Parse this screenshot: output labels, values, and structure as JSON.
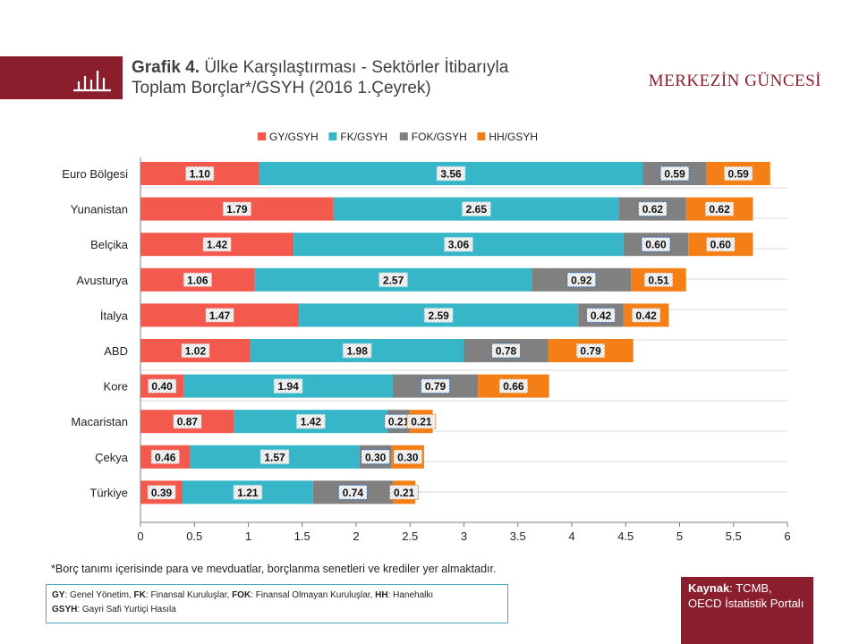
{
  "header": {
    "title_bold": "Grafik 4.",
    "title_rest": " Ülke Karşılaştırması - Sektörler İtibarıyla",
    "title_line2": "Toplam Borçlar*/GSYH  (2016 1.Çeyrek)",
    "brand": "MERKEZİN GÜNCESİ",
    "icon": "bar-chart-icon"
  },
  "colors": {
    "accent": "#8b1e2d",
    "GY": "#f4594e",
    "FK": "#36b6c8",
    "FOK": "#808080",
    "HH": "#f47f17"
  },
  "chart_data": {
    "type": "bar",
    "orientation": "horizontal",
    "stacked": true,
    "categories": [
      "Euro Bölgesi",
      "Yunanistan",
      "Belçika",
      "Avusturya",
      "İtalya",
      "ABD",
      "Kore",
      "Macaristan",
      "Çekya",
      "Türkiye"
    ],
    "series": [
      {
        "name": "GY/GSYH",
        "values": [
          1.1,
          1.79,
          1.42,
          1.06,
          1.47,
          1.02,
          0.4,
          0.87,
          0.46,
          0.39
        ],
        "labels": [
          "1.10",
          "1.79",
          "1.42",
          "1.06",
          "1.47",
          "1.02",
          "0.40",
          "0.87",
          "0.46",
          "0.39"
        ]
      },
      {
        "name": "FK/GSYH",
        "values": [
          3.56,
          2.65,
          3.06,
          2.57,
          2.59,
          1.98,
          1.94,
          1.42,
          1.57,
          1.21
        ],
        "labels": [
          "3.56",
          "2.65",
          "3.06",
          "2.57",
          "2.59",
          "1.98",
          "1.94",
          "1.42",
          "1.57",
          "1.21"
        ]
      },
      {
        "name": "FOK/GSYH",
        "values": [
          0.59,
          0.62,
          0.6,
          0.92,
          0.42,
          0.78,
          0.79,
          0.21,
          0.3,
          0.74
        ],
        "labels": [
          "0.59",
          "0.62",
          "0.60",
          "0.92",
          "0.42",
          "0.78",
          "0.79",
          "0.21",
          "0.30",
          "0.74"
        ]
      },
      {
        "name": "HH/GSYH",
        "values": [
          0.59,
          0.62,
          0.6,
          0.51,
          0.42,
          0.79,
          0.66,
          0.21,
          0.3,
          0.21
        ],
        "labels": [
          "0.59",
          "0.62",
          "0.60",
          "0.51",
          "0.42",
          "0.79",
          "0.66",
          "0.21",
          "0.30",
          "0.21"
        ]
      }
    ],
    "xlim": [
      0,
      6
    ],
    "xticks": [
      "0",
      "0.5",
      "1",
      "1.5",
      "2",
      "2.5",
      "3",
      "3.5",
      "4",
      "4.5",
      "5",
      "5.5",
      "6"
    ],
    "grid": true,
    "legend_position": "top"
  },
  "footnote": "*Borç tanımı içerisinde para ve mevduatlar, borçlanma senetleri ve krediler yer almaktadır.",
  "legend_box": {
    "line1": [
      {
        "k": "GY",
        "v": ": Genel Yönetim, "
      },
      {
        "k": "FK",
        "v": ": Finansal Kuruluşlar, "
      },
      {
        "k": "FOK",
        "v": ": Finansal Olmayan Kuruluşlar, "
      },
      {
        "k": "HH",
        "v": ": Hanehalkı"
      }
    ],
    "line2": [
      {
        "k": "GSYH",
        "v": ":  Gayri Safi Yurtiçi Hasıla"
      }
    ]
  },
  "source": {
    "label": "Kaynak",
    "text": ": TCMB, OECD İstatistik Portalı"
  }
}
